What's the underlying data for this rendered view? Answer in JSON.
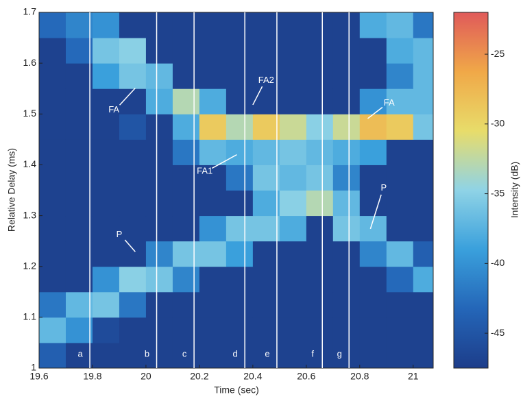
{
  "chart_data": {
    "type": "heatmap",
    "xlabel": "Time (sec)",
    "ylabel": "Relative Delay (ms)",
    "colorbar_label": "Intensity (dB)",
    "xlim": [
      19.6,
      21.075
    ],
    "ylim": [
      1,
      1.7
    ],
    "xticks": [
      19.6,
      19.8,
      20,
      20.2,
      20.4,
      20.6,
      20.8,
      21
    ],
    "yticks": [
      1,
      1.1,
      1.2,
      1.3,
      1.4,
      1.5,
      1.6,
      1.7
    ],
    "clim": [
      -47.5,
      -22
    ],
    "cticks": [
      -25,
      -30,
      -35,
      -40,
      -45
    ],
    "colormap": [
      "#1d3d8a",
      "#2466b8",
      "#3aa0dc",
      "#8fd3e6",
      "#e8dc6a",
      "#f0a848",
      "#e05a5a"
    ],
    "x_bins": [
      19.6,
      19.7,
      19.8,
      19.9,
      20,
      20.1,
      20.2,
      20.3,
      20.4,
      20.5,
      20.6,
      20.7,
      20.8,
      20.9,
      21,
      21.1
    ],
    "y_bins": [
      1,
      1.05,
      1.1,
      1.15,
      1.2,
      1.25,
      1.3,
      1.35,
      1.4,
      1.45,
      1.5,
      1.55,
      1.6,
      1.65,
      1.7
    ],
    "z": [
      [
        -44,
        -47,
        -47,
        -47,
        -47,
        -47,
        -47,
        -47,
        -47,
        -47,
        -47,
        -47,
        -47,
        -47,
        -47
      ],
      [
        -37,
        -40,
        -46,
        -47,
        -47,
        -47,
        -47,
        -47,
        -47,
        -47,
        -47,
        -47,
        -47,
        -47,
        -47
      ],
      [
        -42,
        -37,
        -36,
        -42,
        -47,
        -47,
        -47,
        -47,
        -47,
        -47,
        -47,
        -47,
        -47,
        -47,
        -47
      ],
      [
        -47,
        -47,
        -40,
        -35,
        -36,
        -41,
        -47,
        -47,
        -47,
        -47,
        -47,
        -47,
        -47,
        -43,
        -38
      ],
      [
        -47,
        -47,
        -47,
        -47,
        -41,
        -36,
        -36,
        -39,
        -47,
        -47,
        -47,
        -47,
        -41,
        -37,
        -44
      ],
      [
        -47,
        -47,
        -47,
        -47,
        -47,
        -47,
        -40,
        -36,
        -36,
        -38,
        -47,
        -36,
        -37,
        -47,
        -47
      ],
      [
        -47,
        -47,
        -47,
        -47,
        -47,
        -47,
        -47,
        -47,
        -38,
        -35,
        -33,
        -37,
        -47,
        -47,
        -47
      ],
      [
        -47,
        -47,
        -47,
        -47,
        -47,
        -47,
        -47,
        -42,
        -36,
        -37,
        -36,
        -41,
        -47,
        -47,
        -47
      ],
      [
        -47,
        -47,
        -47,
        -47,
        -47,
        -42,
        -37,
        -38,
        -37,
        -36,
        -37,
        -38,
        -39,
        -47,
        -47
      ],
      [
        -47,
        -47,
        -47,
        -45,
        -47,
        -38,
        -29,
        -33,
        -29,
        -32,
        -35,
        -32,
        -28,
        -29,
        -36
      ],
      [
        -47,
        -47,
        -47,
        -47,
        -38,
        -33,
        -38,
        -47,
        -47,
        -47,
        -47,
        -47,
        -40,
        -37,
        -37
      ],
      [
        -47,
        -47,
        -39,
        -36,
        -37,
        -47,
        -47,
        -47,
        -47,
        -47,
        -47,
        -47,
        -47,
        -41,
        -37
      ],
      [
        -47,
        -43,
        -36,
        -35,
        -47,
        -47,
        -47,
        -47,
        -47,
        -47,
        -47,
        -47,
        -47,
        -38,
        -37
      ],
      [
        -43,
        -41,
        -40,
        -47,
        -47,
        -47,
        -47,
        -47,
        -47,
        -47,
        -47,
        -47,
        -38,
        -37,
        -42
      ]
    ],
    "markers": [
      {
        "x": 19.79,
        "label": "a"
      },
      {
        "x": 20.04,
        "label": "b"
      },
      {
        "x": 20.18,
        "label": "c"
      },
      {
        "x": 20.37,
        "label": "d"
      },
      {
        "x": 20.49,
        "label": "e"
      },
      {
        "x": 20.66,
        "label": "f"
      },
      {
        "x": 20.76,
        "label": "g"
      }
    ],
    "annotations": [
      {
        "text": "FA",
        "x": 19.88,
        "y": 1.508,
        "to": [
          19.96,
          1.551
        ]
      },
      {
        "text": "FA2",
        "x": 20.45,
        "y": 1.566,
        "to": [
          20.4,
          1.518
        ]
      },
      {
        "text": "FA",
        "x": 20.91,
        "y": 1.521,
        "to": [
          20.83,
          1.491
        ]
      },
      {
        "text": "FA1",
        "x": 20.22,
        "y": 1.387,
        "to": [
          20.34,
          1.42
        ]
      },
      {
        "text": "P",
        "x": 19.9,
        "y": 1.262,
        "to": [
          19.96,
          1.229
        ]
      },
      {
        "text": "P",
        "x": 20.89,
        "y": 1.354,
        "to": [
          20.84,
          1.274
        ]
      }
    ]
  }
}
